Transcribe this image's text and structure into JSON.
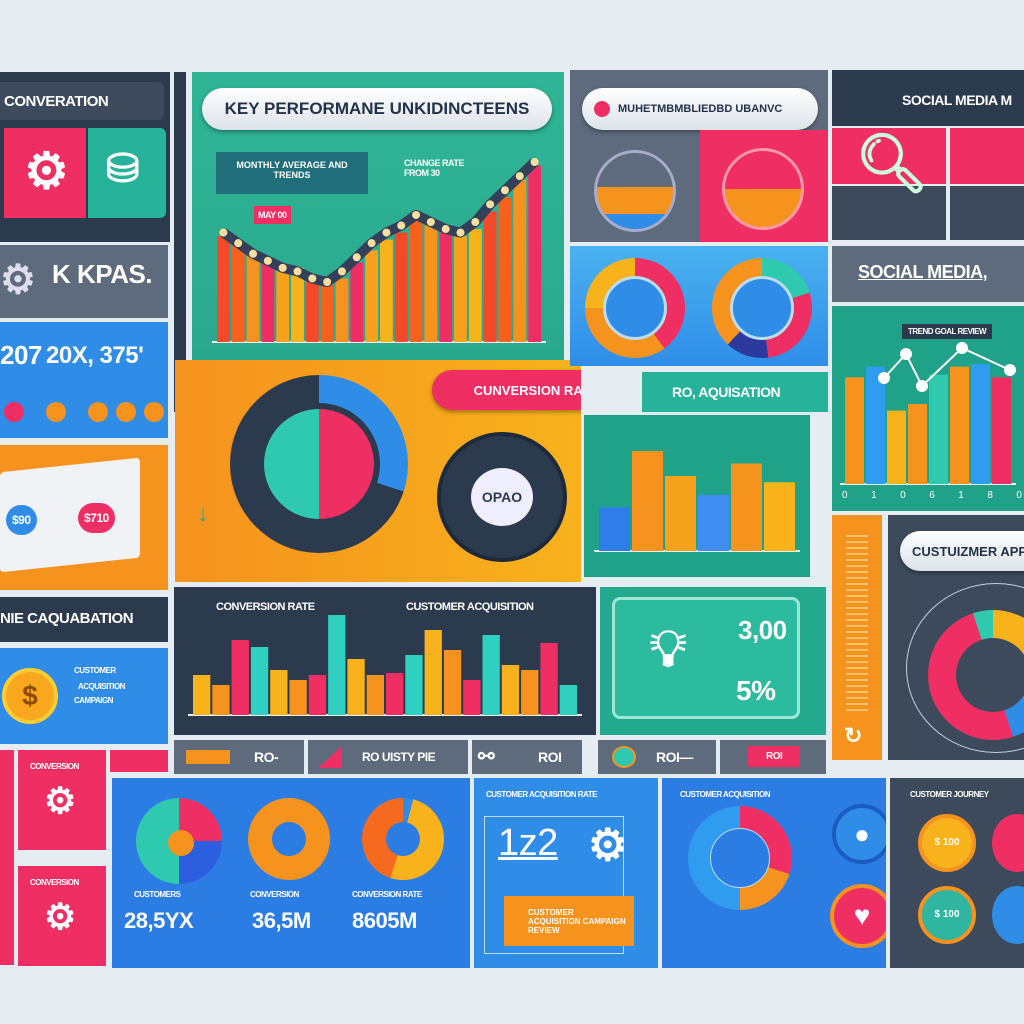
{
  "left": {
    "conversation": "CONVERATION",
    "kpas": "K KPAS.",
    "stats": [
      "207",
      "20X, 375'"
    ],
    "acquisition": "NIE CAQUABATION",
    "coin_text": [
      "CUSTOMER",
      "ACQUISITION",
      "CAMPAIGN"
    ],
    "pink_labels": [
      "CONVERSION",
      "CONVERSION"
    ],
    "book_labels": [
      "$90",
      "$710"
    ]
  },
  "kpi": {
    "title": "KEY PERFORMANE UNKIDINCTEENS",
    "box_label": "MONTHLY AVERAGE AND TRENDS",
    "note": "CHANGE RATE FROM 30",
    "tag": "MAY 00"
  },
  "mid": {
    "pill": "MUHETMBMBLIEDBD UBANVC",
    "conv_rate": "CUNVERSION RATE",
    "ro_acq": "RO, AQUISATION",
    "dial": "OPAO"
  },
  "right": {
    "social1": "SOCIAL MEDIA M",
    "social2": "SOCIAL MEDIA,",
    "chart_label": "TREND GOAL REVIEW",
    "axis": [
      "0",
      "1",
      "0",
      "6",
      "1",
      "8",
      "0"
    ],
    "customer_app": "CUSTUIZMER APP"
  },
  "bottom_chart": {
    "left_label": "CONVERSION RATE",
    "right_label": "CUSTOMER ACQUISITION"
  },
  "tiles": {
    "roi1": "RO-",
    "roi2": "RO UISTY PIE",
    "roi3": "ROI",
    "roi4": "ROI—",
    "tag": "ROI"
  },
  "bulb": {
    "v1": "3,00",
    "v2": "5%"
  },
  "metrics": {
    "labels": [
      "CUSTOMERS",
      "CONVERSION",
      "CONVERSION RATE"
    ],
    "values": [
      "28,5YX",
      "36,5M",
      "8605M"
    ]
  },
  "count": {
    "title": "CUSTOMER ACQUISITION RATE",
    "value": "1z2",
    "button": "CUSTOMER ACQUISITION CAMPAIGN REVIEW"
  },
  "donut_panel": {
    "title": "CUSTOMER ACQUISITION"
  },
  "network": {
    "title": "CUSTOMER JOURNEY",
    "b1": "$ 100",
    "b2": "$ 100"
  },
  "chart_data": [
    {
      "type": "bar",
      "values": [
        60,
        55,
        50,
        47,
        44,
        42,
        38,
        34,
        36,
        45,
        52,
        58,
        62,
        70,
        66,
        62,
        60,
        64,
        74,
        82,
        92,
        100
      ],
      "line": [
        62,
        56,
        50,
        46,
        42,
        40,
        36,
        34,
        40,
        48,
        56,
        62,
        66,
        72,
        68,
        64,
        62,
        68,
        78,
        86,
        94,
        102
      ]
    },
    {
      "type": "bar",
      "values": [
        40,
        30,
        75,
        68,
        45,
        35,
        40,
        100,
        56,
        40,
        42,
        60,
        85,
        65,
        35,
        80,
        50,
        45,
        72,
        30
      ]
    },
    {
      "type": "bar",
      "values": [
        80,
        88,
        55,
        60,
        82,
        88,
        90,
        80
      ]
    },
    {
      "type": "bar",
      "values": [
        35,
        80,
        60,
        45,
        70,
        55
      ]
    }
  ],
  "colors": {
    "pink": "#ef2f63",
    "teal": "#26b39a",
    "blue": "#2f8de8",
    "orange": "#f6921e",
    "yellow": "#f7b21c",
    "dark": "#3c4a5c"
  }
}
